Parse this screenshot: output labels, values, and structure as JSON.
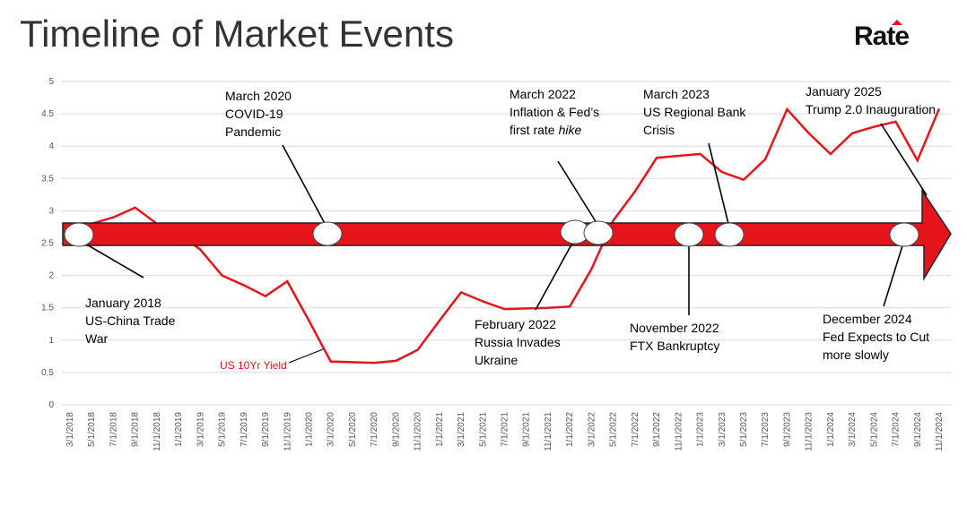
{
  "chart_data": {
    "type": "line",
    "title": "Timeline of Market Events",
    "logo": "Rate",
    "categories": [
      "3/1/2018",
      "5/1/2018",
      "7/1/2018",
      "9/1/2018",
      "11/1/2018",
      "1/1/2019",
      "3/1/2019",
      "5/1/2019",
      "7/1/2019",
      "9/1/2019",
      "11/1/2019",
      "1/1/2020",
      "3/1/2020",
      "5/1/2020",
      "7/1/2020",
      "9/1/2020",
      "11/1/2020",
      "1/1/2021",
      "3/1/2021",
      "5/1/2021",
      "7/1/2021",
      "9/1/2021",
      "11/1/2021",
      "1/1/2022",
      "3/1/2022",
      "5/1/2022",
      "7/1/2022",
      "9/1/2022",
      "11/1/2022",
      "1/1/2023",
      "3/1/2023",
      "5/1/2023",
      "7/1/2023",
      "9/1/2023",
      "11/1/2023",
      "1/1/2024",
      "3/1/2024",
      "5/1/2024",
      "7/1/2024",
      "9/1/2024",
      "11/1/2024"
    ],
    "series": [
      {
        "name": "US 10Yr Yield",
        "color": "#e8141c",
        "values": [
          2.74,
          2.8,
          2.9,
          3.05,
          2.8,
          2.65,
          2.4,
          2.0,
          1.85,
          1.68,
          1.91,
          1.3,
          0.67,
          0.66,
          0.65,
          0.68,
          0.85,
          1.3,
          1.74,
          1.6,
          1.48,
          1.49,
          1.5,
          1.52,
          2.1,
          2.85,
          3.3,
          3.82,
          3.85,
          3.88,
          3.6,
          3.48,
          3.8,
          4.57,
          4.2,
          3.88,
          4.2,
          4.3,
          4.38,
          3.78,
          4.58
        ]
      }
    ],
    "ylim": [
      0,
      5
    ],
    "yticks": [
      0,
      0.5,
      1,
      1.5,
      2,
      2.5,
      3,
      3.5,
      4,
      4.5,
      5
    ],
    "grid": true,
    "annotations": [
      {
        "lines": [
          "January 2018",
          "US-China Trade",
          "War"
        ]
      },
      {
        "lines": [
          "March 2020",
          "COVID-19",
          "Pandemic"
        ]
      },
      {
        "lines": [
          "February 2022",
          "Russia Invades",
          "Ukraine"
        ]
      },
      {
        "lines": [
          "March 2022",
          "Inflation & Fed’s",
          "first rate"
        ],
        "italic": "hike"
      },
      {
        "lines": [
          "November 2022",
          "FTX Bankruptcy"
        ]
      },
      {
        "lines": [
          "March 2023",
          "US Regional Bank",
          "Crisis"
        ]
      },
      {
        "lines": [
          "December 2024",
          "Fed Expects to Cut",
          "more slowly"
        ]
      },
      {
        "lines": [
          "January 2025",
          "Trump 2.0 Inauguration"
        ]
      }
    ]
  }
}
